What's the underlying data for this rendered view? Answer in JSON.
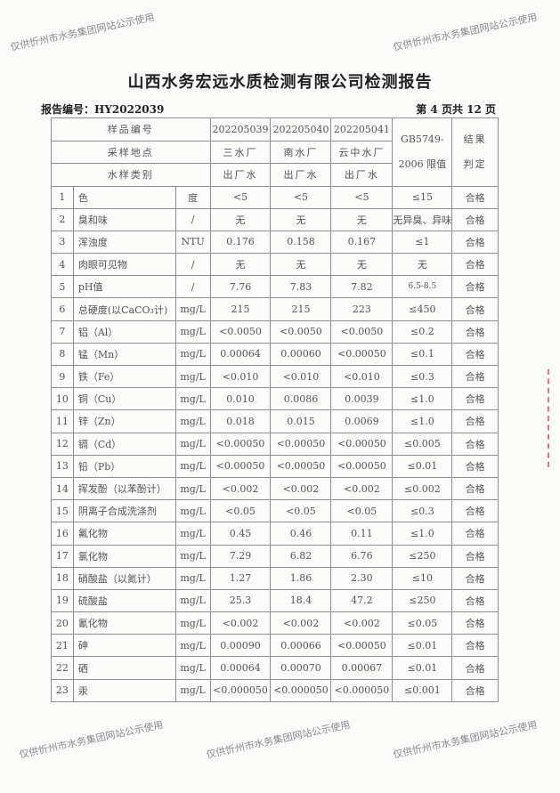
{
  "title": "山西水务宏远水质检测有限公司检测报告",
  "report_no": "报告编号：HY2022039",
  "page_info": "第 4 页共 12 页",
  "watermark": "仅供忻州市水务集团网站公示使用",
  "header": {
    "sample_no_label": "样品编号",
    "location_label": "采样地点",
    "type_label": "水样类别",
    "standard_label_1": "GB5749-",
    "standard_label_2": "2006 限值",
    "result_label_1": "结果",
    "result_label_2": "判定",
    "samples": [
      {
        "no": "202205039",
        "location": "三水厂",
        "type": "出厂水"
      },
      {
        "no": "202205040",
        "location": "南水厂",
        "type": "出厂水"
      },
      {
        "no": "202205041",
        "location": "云中水厂",
        "type": "出厂水"
      }
    ]
  },
  "rows": [
    {
      "idx": "1",
      "name": "色",
      "unit": "度",
      "v": [
        "<5",
        "<5",
        "<5"
      ],
      "limit": "≤15",
      "result": "合格"
    },
    {
      "idx": "2",
      "name": "臭和味",
      "unit": "/",
      "v": [
        "无",
        "无",
        "无"
      ],
      "limit": "无异臭、异味",
      "result": "合格"
    },
    {
      "idx": "3",
      "name": "浑浊度",
      "unit": "NTU",
      "v": [
        "0.176",
        "0.158",
        "0.167"
      ],
      "limit": "≤1",
      "result": "合格"
    },
    {
      "idx": "4",
      "name": "肉眼可见物",
      "unit": "/",
      "v": [
        "无",
        "无",
        "无"
      ],
      "limit": "无",
      "result": "合格"
    },
    {
      "idx": "5",
      "name": "pH值",
      "unit": "/",
      "v": [
        "7.76",
        "7.83",
        "7.82"
      ],
      "limit": "6.5-8.5",
      "result": "合格"
    },
    {
      "idx": "6",
      "name": "总硬度(以CaCO₃计)",
      "unit": "mg/L",
      "v": [
        "215",
        "215",
        "223"
      ],
      "limit": "≤450",
      "result": "合格"
    },
    {
      "idx": "7",
      "name": "铝（Al）",
      "unit": "mg/L",
      "v": [
        "<0.0050",
        "<0.0050",
        "<0.0050"
      ],
      "limit": "≤0.2",
      "result": "合格"
    },
    {
      "idx": "8",
      "name": "锰（Mn）",
      "unit": "mg/L",
      "v": [
        "0.00064",
        "0.00060",
        "<0.00050"
      ],
      "limit": "≤0.1",
      "result": "合格"
    },
    {
      "idx": "9",
      "name": "铁（Fe）",
      "unit": "mg/L",
      "v": [
        "<0.010",
        "<0.010",
        "<0.010"
      ],
      "limit": "≤0.3",
      "result": "合格"
    },
    {
      "idx": "10",
      "name": "铜（Cu）",
      "unit": "mg/L",
      "v": [
        "0.010",
        "0.0086",
        "0.0039"
      ],
      "limit": "≤1.0",
      "result": "合格"
    },
    {
      "idx": "11",
      "name": "锌（Zn）",
      "unit": "mg/L",
      "v": [
        "0.018",
        "0.015",
        "0.0069"
      ],
      "limit": "≤1.0",
      "result": "合格"
    },
    {
      "idx": "12",
      "name": "镉（Cd）",
      "unit": "mg/L",
      "v": [
        "<0.00050",
        "<0.00050",
        "<0.00050"
      ],
      "limit": "≤0.005",
      "result": "合格"
    },
    {
      "idx": "13",
      "name": "铅（Pb）",
      "unit": "mg/L",
      "v": [
        "<0.00050",
        "<0.00050",
        "<0.00050"
      ],
      "limit": "≤0.01",
      "result": "合格"
    },
    {
      "idx": "14",
      "name": "挥发酚（以苯酚计）",
      "unit": "mg/L",
      "v": [
        "<0.002",
        "<0.002",
        "<0.002"
      ],
      "limit": "≤0.002",
      "result": "合格"
    },
    {
      "idx": "15",
      "name": "阴离子合成洗涤剂",
      "unit": "mg/L",
      "v": [
        "<0.05",
        "<0.05",
        "<0.05"
      ],
      "limit": "≤0.3",
      "result": "合格"
    },
    {
      "idx": "16",
      "name": "氟化物",
      "unit": "mg/L",
      "v": [
        "0.45",
        "0.46",
        "0.11"
      ],
      "limit": "≤1.0",
      "result": "合格"
    },
    {
      "idx": "17",
      "name": "氯化物",
      "unit": "mg/L",
      "v": [
        "7.29",
        "6.82",
        "6.76"
      ],
      "limit": "≤250",
      "result": "合格"
    },
    {
      "idx": "18",
      "name": "硝酸盐（以氮计）",
      "unit": "mg/L",
      "v": [
        "1.27",
        "1.86",
        "2.30"
      ],
      "limit": "≤10",
      "result": "合格"
    },
    {
      "idx": "19",
      "name": "硫酸盐",
      "unit": "mg/L",
      "v": [
        "25.3",
        "18.4",
        "47.2"
      ],
      "limit": "≤250",
      "result": "合格"
    },
    {
      "idx": "20",
      "name": "氰化物",
      "unit": "mg/L",
      "v": [
        "<0.002",
        "<0.002",
        "<0.002"
      ],
      "limit": "≤0.05",
      "result": "合格"
    },
    {
      "idx": "21",
      "name": "砷",
      "unit": "mg/L",
      "v": [
        "0.00090",
        "0.00066",
        "<0.00050"
      ],
      "limit": "≤0.01",
      "result": "合格"
    },
    {
      "idx": "22",
      "name": "硒",
      "unit": "mg/L",
      "v": [
        "0.00064",
        "0.00070",
        "0.00067"
      ],
      "limit": "≤0.01",
      "result": "合格"
    },
    {
      "idx": "23",
      "name": "汞",
      "unit": "mg/L",
      "v": [
        "<0.000050",
        "<0.000050",
        "<0.000050"
      ],
      "limit": "≤0.001",
      "result": "合格"
    }
  ]
}
